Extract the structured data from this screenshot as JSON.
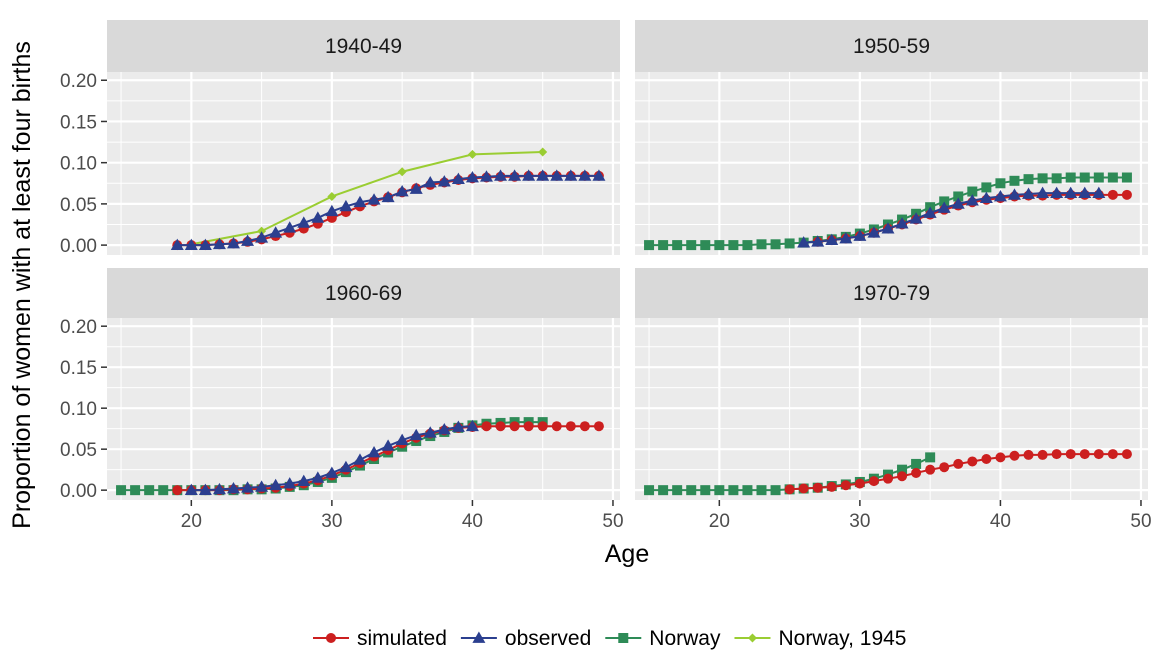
{
  "chart_data": {
    "type": "line",
    "xlabel": "Age",
    "ylabel": "Proportion of women with at least four births",
    "xlim": [
      14,
      50.5
    ],
    "ylim": [
      -0.012,
      0.21
    ],
    "x_ticks": [
      20,
      30,
      40,
      50
    ],
    "y_ticks": [
      0,
      0.05,
      0.1,
      0.15,
      0.2
    ],
    "x_tick_labels": [
      "20",
      "30",
      "40",
      "50"
    ],
    "y_tick_labels": [
      "0.00",
      "0.05",
      "0.10",
      "0.15",
      "0.20"
    ],
    "grid": true,
    "legend_position": "bottom",
    "colors": {
      "simulated": "#cc1f1f",
      "observed": "#2b3f8f",
      "Norway": "#2e8b57",
      "Norway, 1945": "#9acd32",
      "panel_bg": "#ebebeb",
      "strip_bg": "#d9d9d9",
      "grid": "#ffffff"
    },
    "legend": [
      {
        "name": "simulated",
        "marker": "circle"
      },
      {
        "name": "observed",
        "marker": "triangle"
      },
      {
        "name": "Norway",
        "marker": "square"
      },
      {
        "name": "Norway, 1945",
        "marker": "diamond"
      }
    ],
    "panels": [
      {
        "title": "1940-49",
        "series": [
          {
            "name": "simulated",
            "x": [
              19,
              20,
              21,
              22,
              23,
              24,
              25,
              26,
              27,
              28,
              29,
              30,
              31,
              32,
              33,
              34,
              35,
              36,
              37,
              38,
              39,
              40,
              41,
              42,
              43,
              44,
              45,
              46,
              47,
              48,
              49
            ],
            "values": [
              0,
              0,
              0,
              0.001,
              0.002,
              0.004,
              0.007,
              0.011,
              0.015,
              0.02,
              0.026,
              0.033,
              0.04,
              0.047,
              0.053,
              0.058,
              0.064,
              0.069,
              0.073,
              0.076,
              0.079,
              0.081,
              0.082,
              0.083,
              0.083,
              0.084,
              0.084,
              0.084,
              0.084,
              0.084,
              0.084
            ]
          },
          {
            "name": "observed",
            "x": [
              19,
              20,
              21,
              22,
              23,
              24,
              25,
              26,
              27,
              28,
              29,
              30,
              31,
              32,
              33,
              34,
              35,
              36,
              37,
              38,
              39,
              40,
              41,
              42,
              43,
              44,
              45,
              46,
              47,
              48,
              49
            ],
            "values": [
              0,
              0,
              0,
              0.001,
              0.002,
              0.005,
              0.009,
              0.015,
              0.021,
              0.027,
              0.033,
              0.041,
              0.047,
              0.052,
              0.055,
              0.058,
              0.065,
              0.068,
              0.076,
              0.077,
              0.08,
              0.082,
              0.083,
              0.084,
              0.084,
              0.084,
              0.084,
              0.084,
              0.084,
              0.084,
              0.084
            ]
          },
          {
            "name": "Norway, 1945",
            "x": [
              20,
              25,
              30,
              35,
              40,
              45
            ],
            "values": [
              0.001,
              0.017,
              0.059,
              0.089,
              0.11,
              0.113
            ]
          }
        ]
      },
      {
        "title": "1950-59",
        "series": [
          {
            "name": "simulated",
            "x": [
              27,
              28,
              29,
              30,
              31,
              32,
              33,
              34,
              35,
              36,
              37,
              38,
              39,
              40,
              41,
              42,
              43,
              44,
              45,
              46,
              47,
              48,
              49
            ],
            "values": [
              0.004,
              0.006,
              0.008,
              0.011,
              0.015,
              0.02,
              0.025,
              0.031,
              0.037,
              0.043,
              0.048,
              0.052,
              0.055,
              0.057,
              0.059,
              0.06,
              0.06,
              0.061,
              0.061,
              0.061,
              0.061,
              0.061,
              0.061
            ]
          },
          {
            "name": "observed",
            "x": [
              26,
              27,
              28,
              29,
              30,
              31,
              32,
              33,
              34,
              35,
              36,
              37,
              38,
              39,
              40,
              41,
              42,
              43,
              44,
              45,
              46,
              47
            ],
            "values": [
              0.003,
              0.004,
              0.006,
              0.008,
              0.011,
              0.015,
              0.02,
              0.026,
              0.032,
              0.039,
              0.045,
              0.05,
              0.054,
              0.057,
              0.059,
              0.061,
              0.062,
              0.063,
              0.063,
              0.063,
              0.063,
              0.063
            ]
          },
          {
            "name": "Norway",
            "x": [
              15,
              16,
              17,
              18,
              19,
              20,
              21,
              22,
              23,
              24,
              25,
              26,
              27,
              28,
              29,
              30,
              31,
              32,
              33,
              34,
              35,
              36,
              37,
              38,
              39,
              40,
              41,
              42,
              43,
              44,
              45,
              46,
              47,
              48,
              49
            ],
            "values": [
              0,
              0,
              0,
              0,
              0,
              0,
              0,
              0,
              0.001,
              0.001,
              0.002,
              0.003,
              0.005,
              0.007,
              0.01,
              0.014,
              0.019,
              0.025,
              0.031,
              0.038,
              0.046,
              0.053,
              0.059,
              0.065,
              0.07,
              0.075,
              0.078,
              0.08,
              0.081,
              0.081,
              0.082,
              0.082,
              0.082,
              0.082,
              0.082
            ]
          }
        ]
      },
      {
        "title": "1960-69",
        "series": [
          {
            "name": "simulated",
            "x": [
              19,
              20,
              21,
              22,
              23,
              24,
              25,
              26,
              27,
              28,
              29,
              30,
              31,
              32,
              33,
              34,
              35,
              36,
              37,
              38,
              39,
              40,
              41,
              42,
              43,
              44,
              45,
              46,
              47,
              48,
              49
            ],
            "values": [
              0,
              0,
              0,
              0,
              0.001,
              0.001,
              0.002,
              0.003,
              0.005,
              0.008,
              0.012,
              0.018,
              0.025,
              0.033,
              0.041,
              0.049,
              0.057,
              0.064,
              0.069,
              0.073,
              0.076,
              0.077,
              0.078,
              0.078,
              0.078,
              0.078,
              0.078,
              0.078,
              0.078,
              0.078,
              0.078
            ]
          },
          {
            "name": "observed",
            "x": [
              20,
              21,
              22,
              23,
              24,
              25,
              26,
              27,
              28,
              29,
              30,
              31,
              32,
              33,
              34,
              35,
              36,
              37,
              38,
              39,
              40
            ],
            "values": [
              0,
              0,
              0.001,
              0.002,
              0.003,
              0.004,
              0.006,
              0.008,
              0.011,
              0.015,
              0.021,
              0.028,
              0.037,
              0.046,
              0.054,
              0.061,
              0.067,
              0.07,
              0.074,
              0.077,
              0.078
            ]
          },
          {
            "name": "Norway",
            "x": [
              15,
              16,
              17,
              18,
              19,
              20,
              21,
              22,
              23,
              24,
              25,
              26,
              27,
              28,
              29,
              30,
              31,
              32,
              33,
              34,
              35,
              36,
              37,
              38,
              39,
              40,
              41,
              42,
              43,
              44,
              45
            ],
            "values": [
              0,
              0,
              0,
              0,
              0,
              0,
              0,
              0,
              0,
              0.001,
              0.001,
              0.002,
              0.004,
              0.006,
              0.01,
              0.015,
              0.022,
              0.03,
              0.038,
              0.046,
              0.053,
              0.06,
              0.066,
              0.071,
              0.076,
              0.079,
              0.081,
              0.082,
              0.083,
              0.083,
              0.083
            ]
          }
        ]
      },
      {
        "title": "1970-79",
        "series": [
          {
            "name": "simulated",
            "x": [
              25,
              26,
              27,
              28,
              29,
              30,
              31,
              32,
              33,
              34,
              35,
              36,
              37,
              38,
              39,
              40,
              41,
              42,
              43,
              44,
              45,
              46,
              47,
              48,
              49
            ],
            "values": [
              0.001,
              0.002,
              0.003,
              0.004,
              0.006,
              0.008,
              0.011,
              0.014,
              0.017,
              0.021,
              0.025,
              0.028,
              0.032,
              0.035,
              0.038,
              0.04,
              0.042,
              0.043,
              0.043,
              0.044,
              0.044,
              0.044,
              0.044,
              0.044,
              0.044
            ]
          },
          {
            "name": "Norway",
            "x": [
              15,
              16,
              17,
              18,
              19,
              20,
              21,
              22,
              23,
              24,
              25,
              26,
              27,
              28,
              29,
              30,
              31,
              32,
              33,
              34,
              35
            ],
            "values": [
              0,
              0,
              0,
              0,
              0,
              0,
              0,
              0,
              0,
              0,
              0.001,
              0.002,
              0.003,
              0.005,
              0.007,
              0.01,
              0.014,
              0.019,
              0.025,
              0.032,
              0.04
            ]
          }
        ]
      }
    ]
  }
}
